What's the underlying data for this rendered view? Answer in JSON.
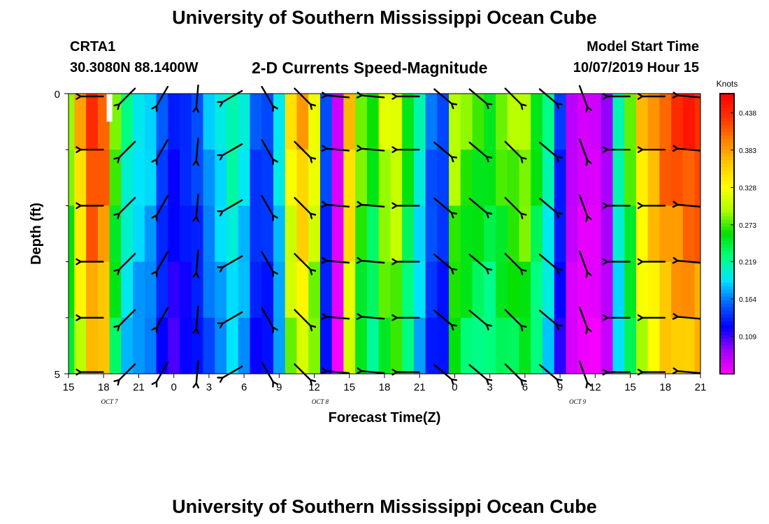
{
  "page": {
    "title_top": "University of Southern Mississippi Ocean Cube",
    "title_bottom": "University of Southern Mississippi Ocean Cube",
    "station_id": "CRTA1",
    "station_coord": "30.3080N 88.1400W",
    "plot_title": "2-D Currents Speed-Magnitude",
    "model_start_label": "Model Start Time",
    "model_start_value": "10/07/2019 Hour 15"
  },
  "chart_data": {
    "type": "heatmap",
    "title": "2-D Currents Speed-Magnitude",
    "xlabel": "Forecast Time(Z)",
    "ylabel": "Depth (ft)",
    "x_unit": "hours since Model Start Time (10/07/2019 15Z)",
    "x_range": [
      0,
      54
    ],
    "x_ticks": [
      "15",
      "18",
      "21",
      "0",
      "3",
      "6",
      "9",
      "12",
      "15",
      "18",
      "21",
      "0",
      "3",
      "6",
      "9",
      "12",
      "15",
      "18",
      "21"
    ],
    "day_labels": [
      {
        "text": "OCT 7",
        "hour": 3.5
      },
      {
        "text": "OCT 8",
        "hour": 21.5
      },
      {
        "text": "OCT 9",
        "hour": 43.5
      }
    ],
    "y_range": [
      0,
      5
    ],
    "y_ticks": [
      "0",
      "5"
    ],
    "depth_levels": [
      0,
      1,
      2,
      3,
      4,
      5
    ],
    "colorbar": {
      "label": "Knots",
      "range": [
        0.054,
        0.466
      ],
      "ticks": [
        "0.438",
        "0.383",
        "0.328",
        "0.273",
        "0.219",
        "0.164",
        "0.109"
      ],
      "tick_values": [
        0.438,
        0.383,
        0.328,
        0.273,
        0.219,
        0.164,
        0.109
      ],
      "colors": [
        "#ff00ff",
        "#a000ff",
        "#0000ff",
        "#0064ff",
        "#00e5ff",
        "#00ff80",
        "#00e000",
        "#b0ff00",
        "#ffff00",
        "#ffc800",
        "#ff8000",
        "#ff3000",
        "#ff0000"
      ]
    },
    "speed_series": [
      {
        "hour": 0,
        "speed": 0.29
      },
      {
        "hour": 1,
        "speed": 0.37
      },
      {
        "hour": 2,
        "speed": 0.44
      },
      {
        "hour": 3,
        "speed": 0.42
      },
      {
        "hour": 4,
        "speed": 0.28
      },
      {
        "hour": 5,
        "speed": 0.22
      },
      {
        "hour": 6,
        "speed": 0.2
      },
      {
        "hour": 7,
        "speed": 0.19
      },
      {
        "hour": 8,
        "speed": 0.15
      },
      {
        "hour": 9,
        "speed": 0.13
      },
      {
        "hour": 10,
        "speed": 0.14
      },
      {
        "hour": 11,
        "speed": 0.15
      },
      {
        "hour": 12,
        "speed": 0.18
      },
      {
        "hour": 13,
        "speed": 0.2
      },
      {
        "hour": 14,
        "speed": 0.22
      },
      {
        "hour": 15,
        "speed": 0.2
      },
      {
        "hour": 16,
        "speed": 0.15
      },
      {
        "hour": 17,
        "speed": 0.15
      },
      {
        "hour": 18,
        "speed": 0.2
      },
      {
        "hour": 19,
        "speed": 0.34
      },
      {
        "hour": 20,
        "speed": 0.38
      },
      {
        "hour": 21,
        "speed": 0.33
      },
      {
        "hour": 22,
        "speed": 0.15
      },
      {
        "hour": 23,
        "speed": 0.07
      },
      {
        "hour": 24,
        "speed": 0.37
      },
      {
        "hour": 25,
        "speed": 0.29
      },
      {
        "hour": 26,
        "speed": 0.26
      },
      {
        "hour": 27,
        "speed": 0.31
      },
      {
        "hour": 28,
        "speed": 0.32
      },
      {
        "hour": 29,
        "speed": 0.26
      },
      {
        "hour": 30,
        "speed": 0.21
      },
      {
        "hour": 31,
        "speed": 0.16
      },
      {
        "hour": 32,
        "speed": 0.15
      },
      {
        "hour": 33,
        "speed": 0.3
      },
      {
        "hour": 34,
        "speed": 0.28
      },
      {
        "hour": 35,
        "speed": 0.27
      },
      {
        "hour": 36,
        "speed": 0.26
      },
      {
        "hour": 37,
        "speed": 0.28
      },
      {
        "hour": 38,
        "speed": 0.29
      },
      {
        "hour": 39,
        "speed": 0.3
      },
      {
        "hour": 40,
        "speed": 0.26
      },
      {
        "hour": 41,
        "speed": 0.22
      },
      {
        "hour": 42,
        "speed": 0.14
      },
      {
        "hour": 43,
        "speed": 0.08
      },
      {
        "hour": 44,
        "speed": 0.07
      },
      {
        "hour": 45,
        "speed": 0.07
      },
      {
        "hour": 46,
        "speed": 0.09
      },
      {
        "hour": 47,
        "speed": 0.22
      },
      {
        "hour": 48,
        "speed": 0.28
      },
      {
        "hour": 49,
        "speed": 0.36
      },
      {
        "hour": 50,
        "speed": 0.39
      },
      {
        "hour": 51,
        "speed": 0.42
      },
      {
        "hour": 52,
        "speed": 0.43
      },
      {
        "hour": 53,
        "speed": 0.44
      },
      {
        "hour": 54,
        "speed": 0.44
      }
    ],
    "missing_data": [
      {
        "hour": 3.5,
        "depth_from": 0,
        "depth_to": 0.5
      }
    ],
    "vectors": [
      {
        "hour": 2,
        "direction": "W",
        "angle_deg": 180
      },
      {
        "hour": 5,
        "direction": "SW",
        "angle_deg": 225
      },
      {
        "hour": 8,
        "direction": "SW",
        "angle_deg": 240
      },
      {
        "hour": 11,
        "direction": "S",
        "angle_deg": 265
      },
      {
        "hour": 14,
        "direction": "SW",
        "angle_deg": 210
      },
      {
        "hour": 17,
        "direction": "SE",
        "angle_deg": 300
      },
      {
        "hour": 20,
        "direction": "SE",
        "angle_deg": 315
      },
      {
        "hour": 23,
        "direction": "W",
        "angle_deg": 175
      },
      {
        "hour": 26,
        "direction": "W",
        "angle_deg": 175
      },
      {
        "hour": 29,
        "direction": "W",
        "angle_deg": 180
      },
      {
        "hour": 32,
        "direction": "SE",
        "angle_deg": 320
      },
      {
        "hour": 35,
        "direction": "SE",
        "angle_deg": 320
      },
      {
        "hour": 38,
        "direction": "SE",
        "angle_deg": 315
      },
      {
        "hour": 41,
        "direction": "SE",
        "angle_deg": 320
      },
      {
        "hour": 44,
        "direction": "S",
        "angle_deg": 290
      },
      {
        "hour": 47,
        "direction": "W",
        "angle_deg": 180
      },
      {
        "hour": 50,
        "direction": "W",
        "angle_deg": 180
      },
      {
        "hour": 53,
        "direction": "W",
        "angle_deg": 175
      }
    ]
  }
}
